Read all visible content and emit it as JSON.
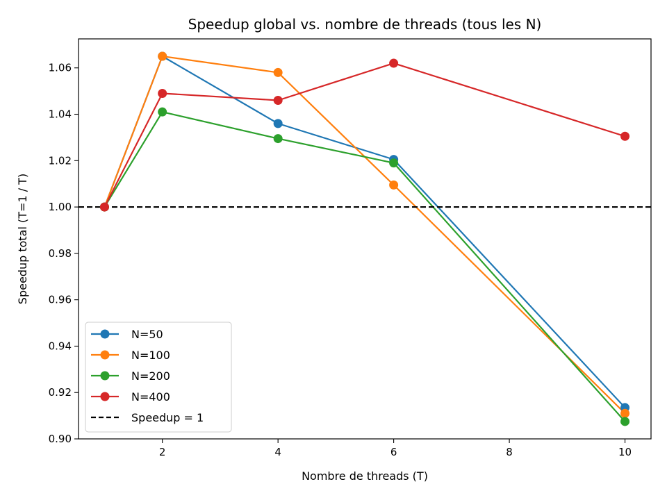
{
  "chart_data": {
    "type": "line",
    "title": "Speedup global vs. nombre de threads (tous les N)",
    "xlabel": "Nombre de threads (T)",
    "ylabel": "Speedup total (T=1 / T)",
    "xlim": [
      0.55,
      10.45
    ],
    "ylim": [
      0.9,
      1.0725
    ],
    "xticks": [
      2,
      4,
      6,
      8,
      10
    ],
    "yticks": [
      0.9,
      0.92,
      0.94,
      0.96,
      0.98,
      1.0,
      1.02,
      1.04,
      1.06
    ],
    "ytick_labels": [
      "0.90",
      "0.92",
      "0.94",
      "0.96",
      "0.98",
      "1.00",
      "1.02",
      "1.04",
      "1.06"
    ],
    "grid": false,
    "legend_position": "lower-left",
    "x": [
      1,
      2,
      4,
      6,
      10
    ],
    "series": [
      {
        "name": "N=50",
        "color": "#1f77b4",
        "values": [
          1.0,
          1.065,
          1.036,
          1.0205,
          0.9135
        ]
      },
      {
        "name": "N=100",
        "color": "#ff7f0e",
        "values": [
          1.0,
          1.065,
          1.058,
          1.0095,
          0.911
        ]
      },
      {
        "name": "N=200",
        "color": "#2ca02c",
        "values": [
          1.0,
          1.041,
          1.0295,
          1.019,
          0.9075
        ]
      },
      {
        "name": "N=400",
        "color": "#d62728",
        "values": [
          1.0,
          1.049,
          1.046,
          1.062,
          1.0305
        ]
      }
    ],
    "reference_line": {
      "name": "Speedup = 1",
      "y": 1.0,
      "color": "#000000",
      "style": "dashed"
    }
  }
}
